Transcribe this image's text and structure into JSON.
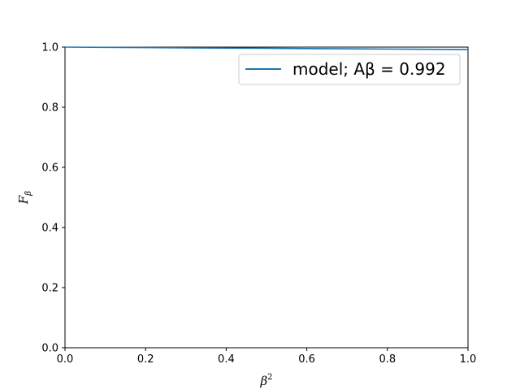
{
  "chart_data": {
    "type": "line",
    "title": "",
    "xlabel": "β",
    "xlabel_superscript": "2",
    "ylabel": "F",
    "ylabel_subscript": "β",
    "xlim": [
      0.0,
      1.0
    ],
    "ylim": [
      0.0,
      1.0
    ],
    "xticks": [
      "0.0",
      "0.2",
      "0.4",
      "0.6",
      "0.8",
      "1.0"
    ],
    "yticks": [
      "0.0",
      "0.2",
      "0.4",
      "0.6",
      "0.8",
      "1.0"
    ],
    "legend_position": "top-right",
    "grid": false,
    "series": [
      {
        "name": "model; Aβ = 0.992",
        "color": "#1f77b4",
        "x": [
          0.0,
          0.1,
          0.2,
          0.3,
          0.4,
          0.5,
          0.6,
          0.7,
          0.8,
          0.9,
          1.0
        ],
        "y": [
          1.0,
          0.9992,
          0.9984,
          0.9976,
          0.9968,
          0.996,
          0.9952,
          0.9944,
          0.9936,
          0.9928,
          0.992
        ]
      }
    ]
  }
}
